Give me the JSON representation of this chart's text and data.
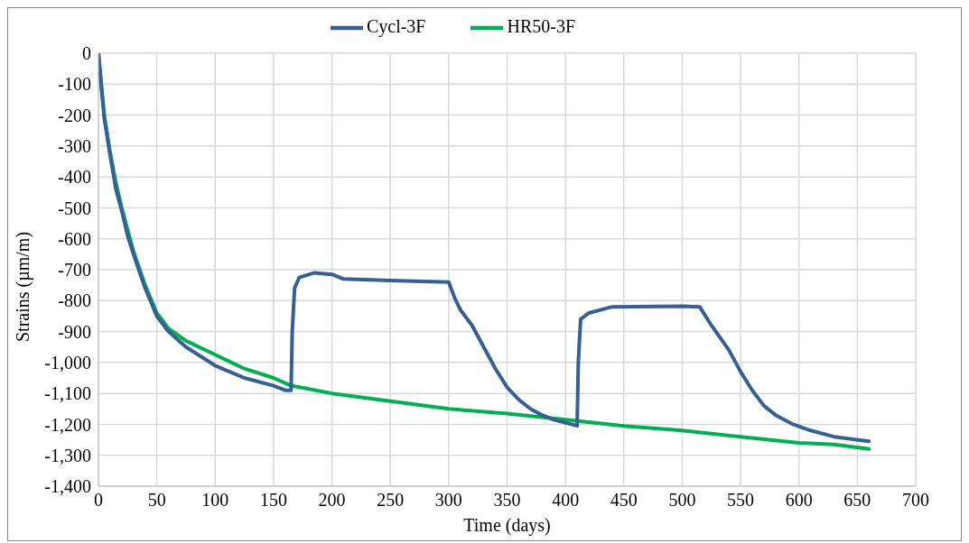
{
  "chart_data": {
    "type": "line",
    "xlabel": "Time (days)",
    "ylabel": "Strains  (µm/m)",
    "xlim": [
      0,
      700
    ],
    "xticks": [
      0,
      50,
      100,
      150,
      200,
      250,
      300,
      350,
      400,
      450,
      500,
      550,
      600,
      650,
      700
    ],
    "ylim": [
      -1400,
      0
    ],
    "yticks": [
      {
        "value": 0,
        "label": "0"
      },
      {
        "value": -100,
        "label": "-100"
      },
      {
        "value": -200,
        "label": "-200"
      },
      {
        "value": -300,
        "label": "-300"
      },
      {
        "value": -400,
        "label": "-400"
      },
      {
        "value": -500,
        "label": "-500"
      },
      {
        "value": -600,
        "label": "-600"
      },
      {
        "value": -700,
        "label": "-700"
      },
      {
        "value": -800,
        "label": "-800"
      },
      {
        "value": -900,
        "label": "-900"
      },
      {
        "value": -1000,
        "label": "-1,000"
      },
      {
        "value": -1100,
        "label": "-1,100"
      },
      {
        "value": -1200,
        "label": "-1,200"
      },
      {
        "value": -1300,
        "label": "-1,300"
      },
      {
        "value": -1400,
        "label": "-1,400"
      }
    ],
    "grid": true,
    "legend": "top",
    "marker": "none",
    "line_style": "solid",
    "series": [
      {
        "name": "HR50-3F",
        "color": "#00b050",
        "x": [
          0,
          2,
          5,
          10,
          15,
          20,
          25,
          30,
          40,
          50,
          60,
          75,
          100,
          125,
          150,
          165,
          200,
          250,
          300,
          350,
          400,
          450,
          500,
          550,
          600,
          630,
          660
        ],
        "values": [
          0,
          -80,
          -200,
          -320,
          -420,
          -500,
          -570,
          -640,
          -750,
          -840,
          -890,
          -930,
          -975,
          -1020,
          -1050,
          -1075,
          -1100,
          -1125,
          -1150,
          -1165,
          -1185,
          -1205,
          -1220,
          -1240,
          -1260,
          -1265,
          -1280
        ]
      },
      {
        "name": "Cycl-3F",
        "color": "#376092",
        "x": [
          0,
          2,
          5,
          10,
          15,
          20,
          25,
          30,
          40,
          50,
          60,
          75,
          100,
          125,
          150,
          160,
          165,
          166,
          168,
          172,
          185,
          200,
          210,
          250,
          300,
          305,
          310,
          320,
          330,
          340,
          350,
          360,
          370,
          380,
          390,
          405,
          410,
          411,
          413,
          420,
          440,
          500,
          515,
          525,
          540,
          550,
          560,
          570,
          580,
          595,
          610,
          630,
          660
        ],
        "values": [
          0,
          -90,
          -210,
          -330,
          -440,
          -510,
          -590,
          -650,
          -760,
          -850,
          -900,
          -950,
          -1010,
          -1050,
          -1075,
          -1090,
          -1090,
          -900,
          -760,
          -725,
          -710,
          -715,
          -730,
          -735,
          -740,
          -790,
          -830,
          -880,
          -950,
          -1020,
          -1080,
          -1120,
          -1150,
          -1170,
          -1185,
          -1200,
          -1205,
          -1000,
          -860,
          -840,
          -820,
          -818,
          -820,
          -880,
          -960,
          -1030,
          -1090,
          -1140,
          -1170,
          -1200,
          -1220,
          -1240,
          -1255
        ]
      }
    ]
  }
}
